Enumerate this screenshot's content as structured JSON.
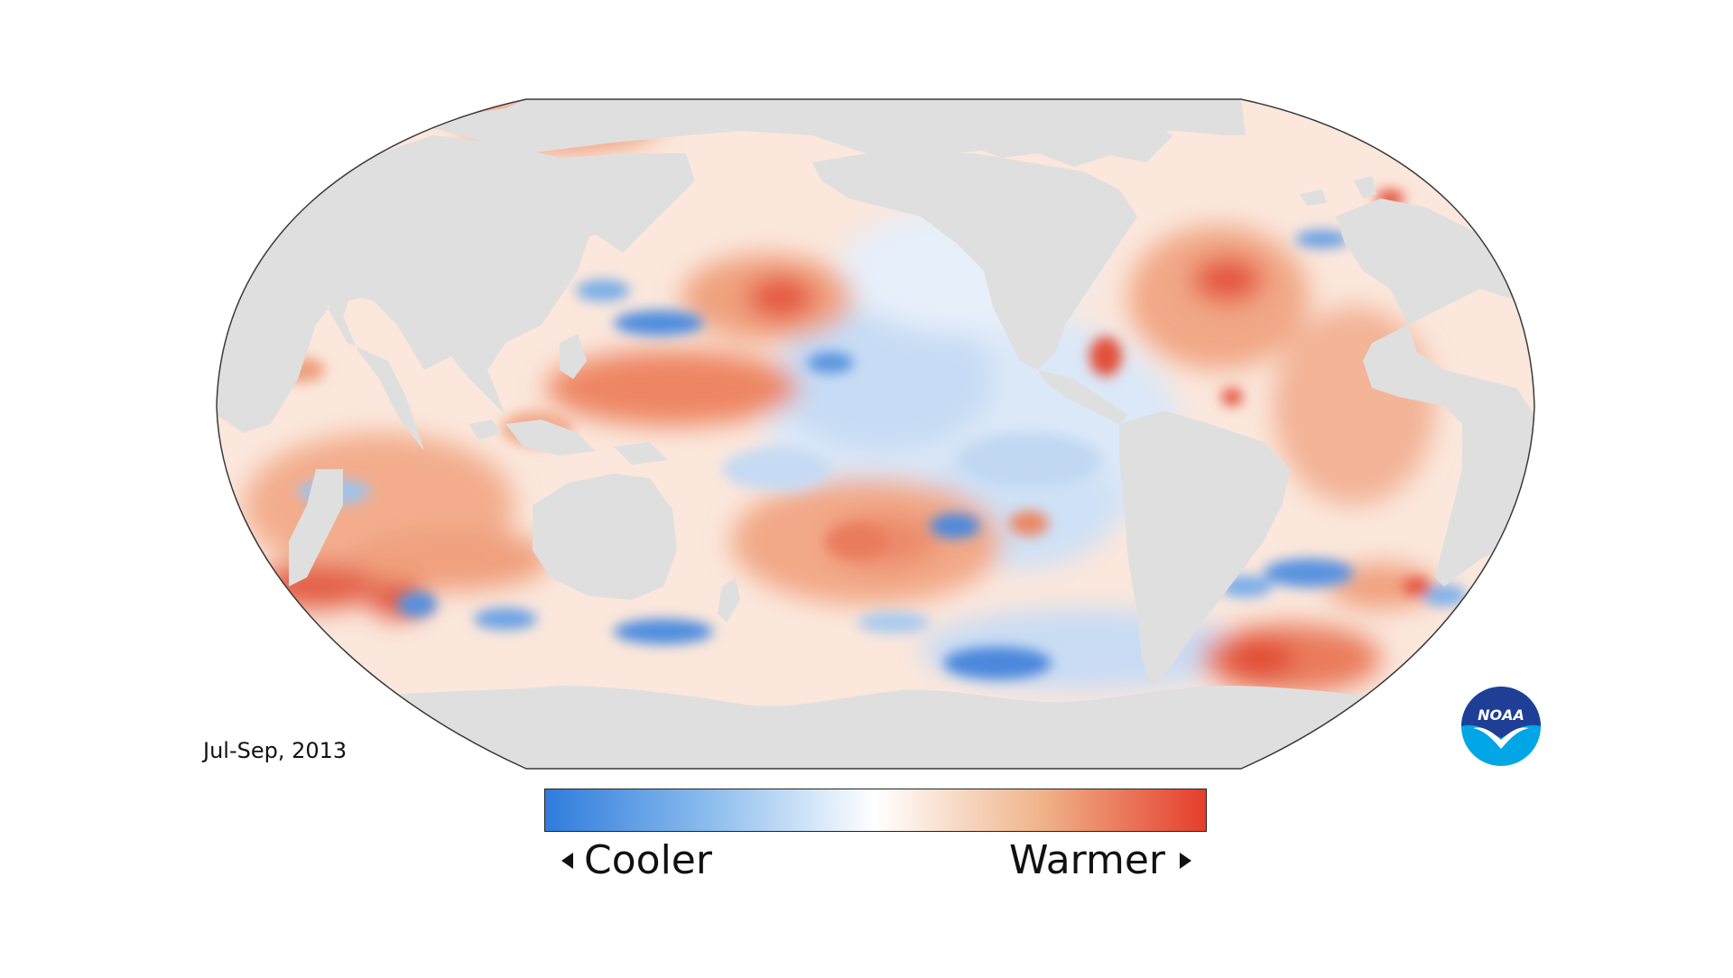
{
  "map": {
    "period": "Jul-Sep, 2013",
    "projection": "robinson-pacific-centered",
    "colors": {
      "land": "#dfdfdf",
      "outline": "#3a3a3a",
      "cool": "#2f7bdc",
      "neutral": "#ffffff",
      "warm": "#e53d2c"
    }
  },
  "legend": {
    "low_label": "Cooler",
    "high_label": "Warmer",
    "gradient": [
      "#2f7bdc",
      "#8cbdee",
      "#ffffff",
      "#f0b48a",
      "#e53d2c"
    ]
  },
  "logo": {
    "text": "NOAA",
    "colors": {
      "top": "#1f3f96",
      "bottom": "#00a6e6",
      "bird": "#ffffff"
    }
  }
}
